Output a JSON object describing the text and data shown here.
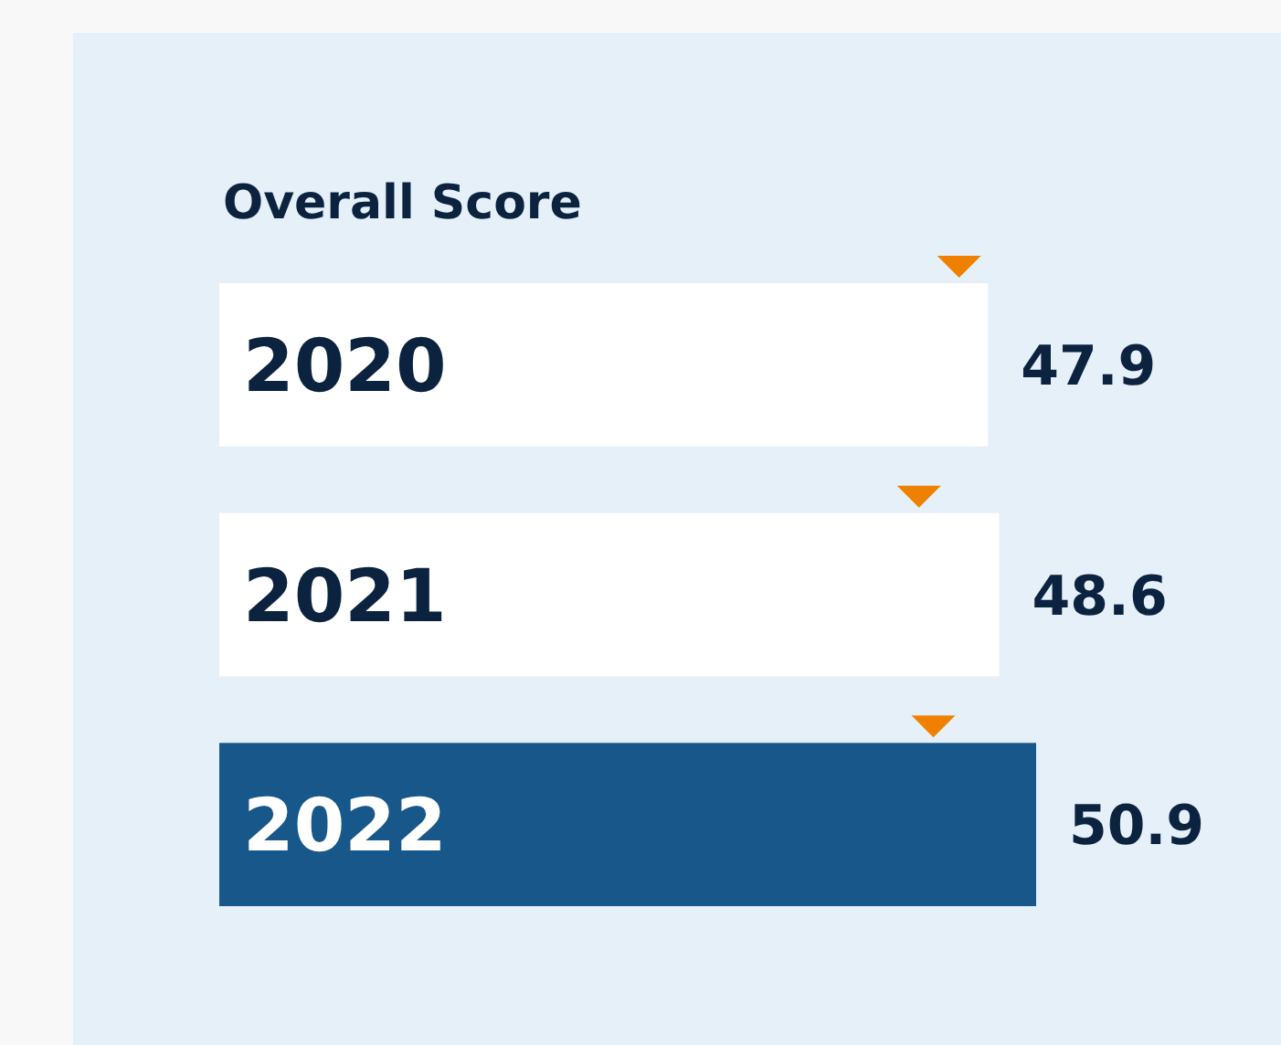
{
  "chart_data": {
    "type": "bar",
    "orientation": "horizontal",
    "title": "Overall Score",
    "categories": [
      "2020",
      "2021",
      "2022"
    ],
    "series": [
      {
        "values": [
          47.9,
          48.6,
          50.9
        ],
        "colors": [
          "#ffffff",
          "#ffffff",
          "#17578a"
        ],
        "value_labels": [
          "47.9",
          "48.6",
          "50.9"
        ]
      },
      {
        "type": "scatter",
        "marker": "triangle",
        "color": "#f08100",
        "values": [
          46.1,
          43.6,
          44.5
        ]
      }
    ]
  }
}
